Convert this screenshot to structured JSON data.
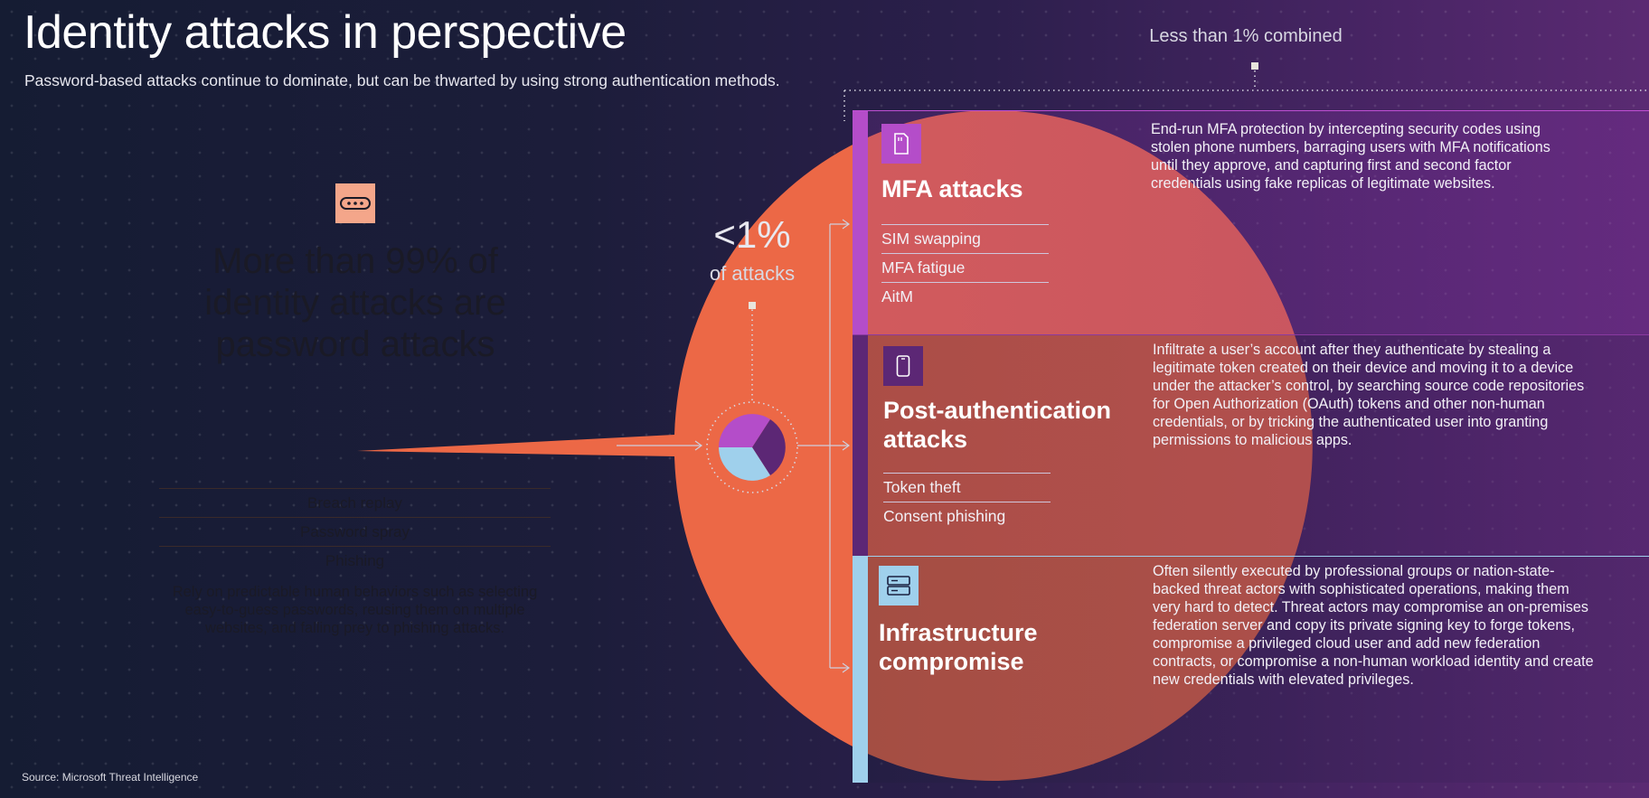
{
  "header": {
    "title": "Identity attacks in perspective",
    "subtitle": "Password-based attacks continue to dominate, but can be thwarted by using strong authentication methods."
  },
  "password_attacks": {
    "icon": "password-icon",
    "headline": "More than 99% of identity attacks are password attacks",
    "types": [
      "Breach replay",
      "Password spray",
      "Phishing"
    ],
    "description": "Rely on predictable human behaviors such as selecting easy-to-guess passwords, reusing them on multiple websites, and falling prey to phishing attacks."
  },
  "other_attacks": {
    "value": "<1%",
    "label": "of attacks",
    "combined_note": "Less than 1% combined"
  },
  "panels": [
    {
      "icon": "sim-card-icon",
      "title": "MFA attacks",
      "items": [
        "SIM swapping",
        "MFA fatigue",
        "AitM"
      ],
      "description": "End-run MFA protection by intercepting security codes using stolen phone numbers, barraging users with MFA notifications until they approve, and capturing first and second factor credentials using fake replicas of legitimate websites."
    },
    {
      "icon": "device-icon",
      "title": "Post-authentication attacks",
      "items": [
        "Token theft",
        "Consent phishing"
      ],
      "description": "Infiltrate a user’s account after they authenticate by stealing a legitimate token created on their device and moving it to a device under the attacker’s control, by searching source code repositories for Open Authorization (OAuth) tokens and other non-human credentials, or by tricking the authenticated user into granting permissions to malicious apps."
    },
    {
      "icon": "server-icon",
      "title": "Infrastructure compromise",
      "items": [],
      "description": "Often silently executed by professional groups or nation-state-backed threat actors with sophisticated operations, making them very hard to detect. Threat actors may compromise an on-premises federation server and copy its private signing key to forge tokens, compromise a privileged cloud user and add new federation contracts, or compromise a non-human workload identity and create new credentials with elevated privileges."
    }
  ],
  "colors": {
    "password": "#ec6846",
    "mfa": "#b44dc9",
    "post_auth": "#5c2775",
    "infrastructure": "#9fd0ec"
  },
  "footer": {
    "source": "Source: Microsoft Threat Intelligence"
  }
}
